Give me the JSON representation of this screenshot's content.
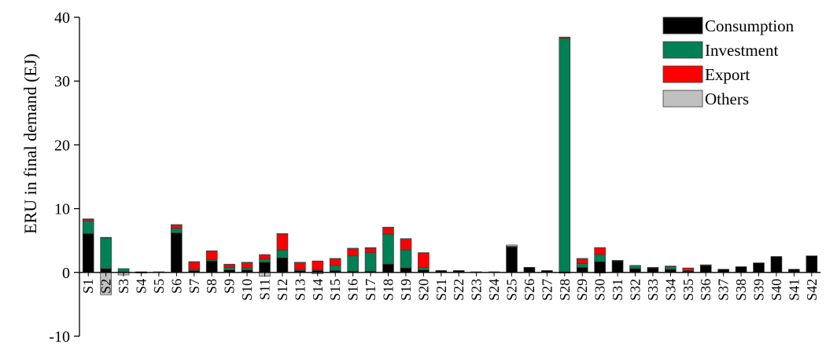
{
  "chart_data": {
    "type": "bar",
    "stacked": true,
    "ylabel": "ERU in final demand (EJ)",
    "ylim": [
      -10,
      40
    ],
    "yticks": [
      -10,
      0,
      10,
      20,
      30,
      40
    ],
    "legend": "top-right",
    "grid": false,
    "categories": [
      "S1",
      "S2",
      "S3",
      "S4",
      "S5",
      "S6",
      "S7",
      "S8",
      "S9",
      "S10",
      "S11",
      "S12",
      "S13",
      "S14",
      "S15",
      "S16",
      "S17",
      "S18",
      "S19",
      "S20",
      "S21",
      "S22",
      "S23",
      "S24",
      "S25",
      "S26",
      "S27",
      "S28",
      "S29",
      "S30",
      "S31",
      "S32",
      "S33",
      "S34",
      "S35",
      "S36",
      "S37",
      "S38",
      "S39",
      "S40",
      "S41",
      "S42"
    ],
    "series": [
      {
        "name": "Consumption",
        "color": "#000000",
        "values": [
          6.1,
          0.6,
          0.1,
          0.1,
          0.1,
          6.2,
          0.3,
          1.8,
          0.4,
          0.4,
          1.6,
          2.3,
          0.3,
          0.3,
          0.3,
          0.2,
          0.2,
          1.3,
          0.7,
          0.4,
          0.3,
          0.3,
          0.1,
          0.1,
          4.0,
          0.8,
          0.3,
          0.1,
          0.8,
          1.7,
          1.8,
          0.6,
          0.7,
          0.5,
          0.2,
          1.1,
          0.5,
          0.9,
          1.5,
          2.5,
          0.5,
          2.6
        ]
      },
      {
        "name": "Investment",
        "color": "#008055",
        "values": [
          2.0,
          4.8,
          0.5,
          0.0,
          0.0,
          0.7,
          0.2,
          0.2,
          0.4,
          0.3,
          0.5,
          1.2,
          0.2,
          0.1,
          0.8,
          2.4,
          2.9,
          4.7,
          2.8,
          0.4,
          0.0,
          0.0,
          0.0,
          0.0,
          0.0,
          0.0,
          0.0,
          36.6,
          0.6,
          1.1,
          0.1,
          0.5,
          0.1,
          0.4,
          0.1,
          0.1,
          0.0,
          0.0,
          0.0,
          0.0,
          0.0,
          0.0
        ]
      },
      {
        "name": "Export",
        "color": "#ff0000",
        "values": [
          0.2,
          0.1,
          0.0,
          0.0,
          0.0,
          0.5,
          1.1,
          1.3,
          0.4,
          0.8,
          0.7,
          2.5,
          1.0,
          1.4,
          1.0,
          1.1,
          0.7,
          1.0,
          1.7,
          2.2,
          0.0,
          0.0,
          0.0,
          0.0,
          0.1,
          0.0,
          0.0,
          0.2,
          0.7,
          1.1,
          0.0,
          0.0,
          0.0,
          0.1,
          0.4,
          0.0,
          0.0,
          0.0,
          0.0,
          0.0,
          0.0,
          0.0
        ]
      },
      {
        "name": "Others",
        "color": "#c0c0c0",
        "values": [
          0.1,
          -3.5,
          -0.4,
          -0.1,
          0.0,
          0.1,
          0.1,
          0.1,
          0.1,
          0.1,
          -0.6,
          0.1,
          0.1,
          -0.2,
          0.1,
          0.1,
          0.1,
          0.1,
          0.1,
          0.1,
          0.0,
          0.0,
          0.0,
          0.0,
          0.2,
          0.0,
          0.0,
          -0.1,
          0.1,
          -0.1,
          0.0,
          0.0,
          0.0,
          0.0,
          0.0,
          0.0,
          0.0,
          0.0,
          0.0,
          0.0,
          0.0,
          0.0
        ]
      }
    ]
  }
}
